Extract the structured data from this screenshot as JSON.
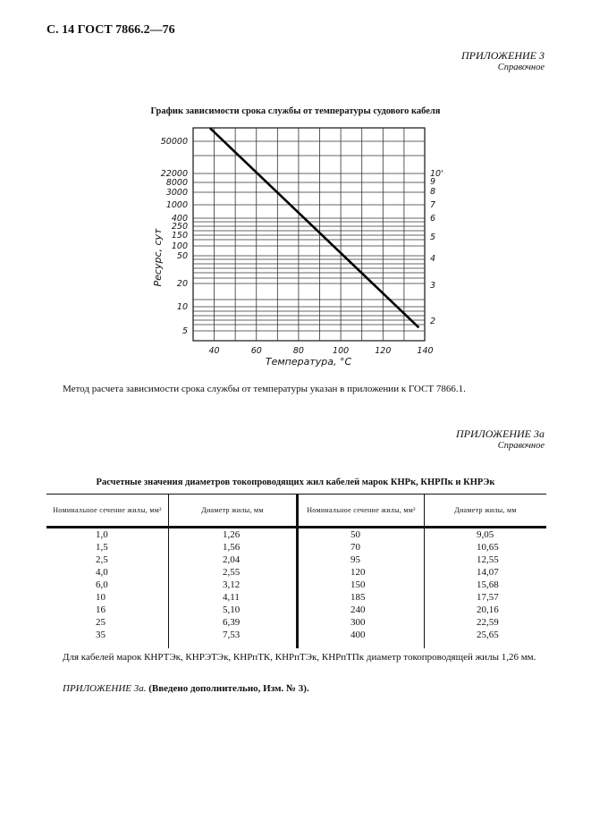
{
  "header": "С. 14 ГОСТ 7866.2—76",
  "appendix3": {
    "title": "ПРИЛОЖЕНИЕ 3",
    "subtitle": "Справочное"
  },
  "chart_title": "График зависимости срока службы от температуры судового кабеля",
  "chart_data": {
    "type": "line",
    "title": "График зависимости срока службы от температуры судового кабеля",
    "xlabel": "Температура, °С",
    "ylabel": "Ресурс, сут",
    "x_ticks": [
      40,
      60,
      80,
      100,
      120,
      140
    ],
    "xlim": [
      30,
      140
    ],
    "y_ticks_left": [
      50000,
      22000,
      8000,
      3000,
      1000,
      400,
      250,
      150,
      100,
      50,
      20,
      10,
      5
    ],
    "y_ticks_right": [
      "10'",
      "9",
      "8",
      "7",
      "6",
      "5",
      "4",
      "3",
      "2"
    ],
    "grid": true,
    "series": [
      {
        "x": [
          38,
          137
        ],
        "y": [
          70000,
          5.5
        ]
      }
    ]
  },
  "method_note": "Метод расчета зависимости срока службы от температуры указан в приложении к ГОСТ 7866.1.",
  "appendix3a": {
    "title": "ПРИЛОЖЕНИЕ 3а",
    "subtitle": "Справочное"
  },
  "table": {
    "title": "Расчетные значения диаметров токопроводящих жил кабелей марок КНРк, КНРПк и КНРЭк",
    "headers": [
      "Номинальное сечение жилы, мм²",
      "Диаметр жилы, мм",
      "Номинальное сечение жилы, мм²",
      "Диаметр жилы, мм"
    ],
    "rows": [
      [
        "1,0",
        "1,26",
        "50",
        "9,05"
      ],
      [
        "1,5",
        "1,56",
        "70",
        "10,65"
      ],
      [
        "2,5",
        "2,04",
        "95",
        "12,55"
      ],
      [
        "4,0",
        "2,55",
        "120",
        "14,07"
      ],
      [
        "6,0",
        "3,12",
        "150",
        "15,68"
      ],
      [
        "10",
        "4,11",
        "185",
        "17,57"
      ],
      [
        "16",
        "5,10",
        "240",
        "20,16"
      ],
      [
        "25",
        "6,39",
        "300",
        "22,59"
      ],
      [
        "35",
        "7,53",
        "400",
        "25,65"
      ]
    ]
  },
  "note": "Для кабелей марок КНРТЭк, КНРЭТЭк, КНРпТК, КНРпТЭк, КНРпТПк диаметр токопроводящей жилы 1,26 мм.",
  "footer": {
    "label": "ПРИЛОЖЕНИЕ 3а.",
    "text": "(Введено дополнительно, Изм. № 3)."
  }
}
